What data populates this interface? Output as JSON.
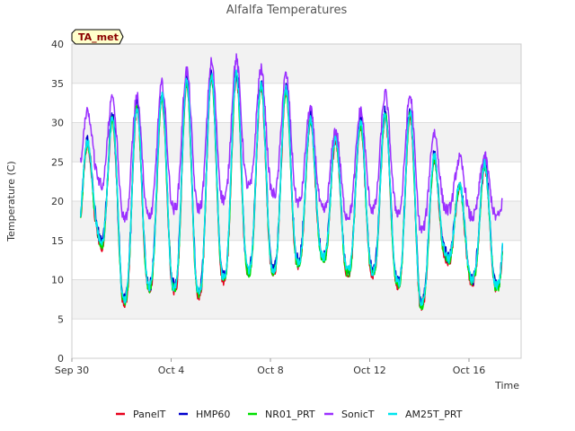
{
  "chart_data": {
    "type": "line",
    "title": "Alfalfa Temperatures",
    "tag": "TA_met",
    "xlabel": "Time",
    "ylabel": "Temperature (C)",
    "ylim": [
      0,
      40
    ],
    "xlim": [
      0,
      18.1
    ],
    "yticks": [
      0,
      5,
      10,
      15,
      20,
      25,
      30,
      35,
      40
    ],
    "xticks": [
      {
        "v": 0,
        "label": "Sep 30"
      },
      {
        "v": 4,
        "label": "Oct 4"
      },
      {
        "v": 8,
        "label": "Oct 8"
      },
      {
        "v": 12,
        "label": "Oct 12"
      },
      {
        "v": 16,
        "label": "Oct 16"
      }
    ],
    "x_unit": "days since Sep 30",
    "grid": true,
    "band_fill": true,
    "legend_position": "bottom",
    "anchors": {
      "days": [
        0,
        1,
        2,
        3,
        4,
        5,
        6,
        7,
        8,
        9,
        10,
        11,
        12,
        13,
        14,
        15,
        16,
        17
      ],
      "air_max": [
        26,
        28,
        32,
        32,
        34,
        36,
        36,
        36,
        34,
        34,
        28,
        28,
        31,
        31,
        31,
        22,
        22,
        26
      ],
      "air_min": [
        13,
        16,
        7,
        9,
        9,
        8,
        10,
        11,
        11,
        12,
        13,
        11,
        11,
        10,
        6,
        13,
        10,
        9
      ],
      "sonic_max": [
        30,
        32,
        34,
        33,
        36,
        37,
        38,
        38,
        36,
        36,
        29,
        29,
        33,
        34,
        33,
        26,
        25,
        26
      ],
      "sonic_min": [
        22,
        23,
        18,
        18,
        19,
        19,
        20,
        22,
        21,
        20,
        19,
        18,
        19,
        19,
        16,
        19,
        18,
        18
      ]
    },
    "series": [
      {
        "name": "PanelT",
        "color": "#e8001c"
      },
      {
        "name": "HMP60",
        "color": "#0000cd"
      },
      {
        "name": "NR01_PRT",
        "color": "#00e000"
      },
      {
        "name": "SonicT",
        "color": "#9b30ff"
      },
      {
        "name": "AM25T_PRT",
        "color": "#00e5ee"
      }
    ]
  }
}
